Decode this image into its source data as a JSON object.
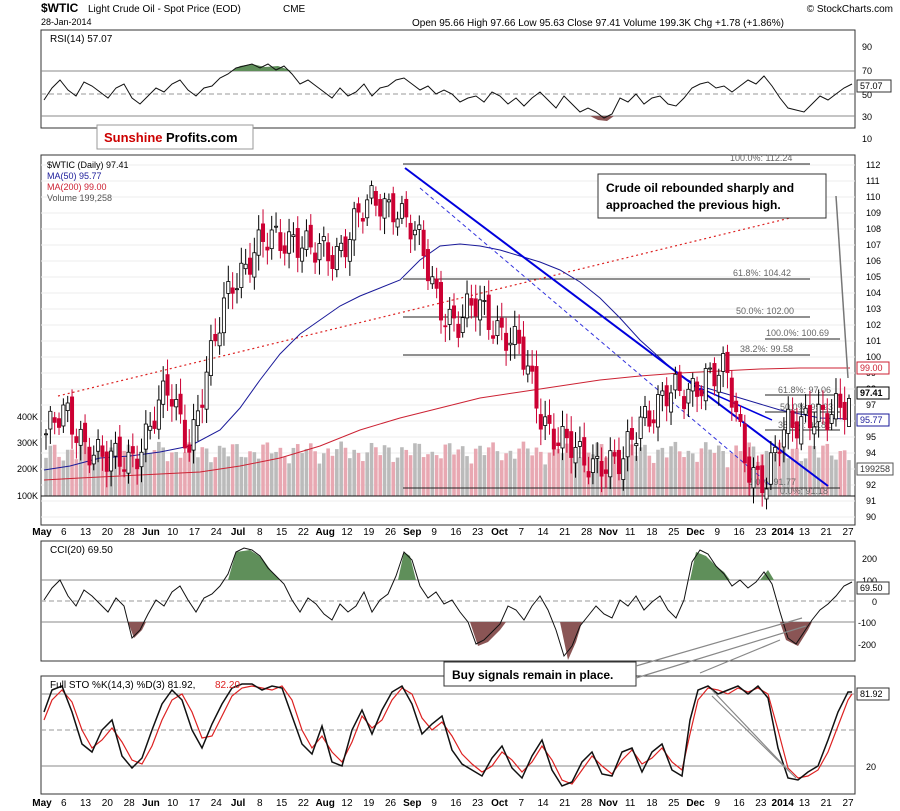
{
  "header": {
    "symbol": "$WTIC",
    "name": "Light Crude Oil - Spot Price (EOD)",
    "exchange": "CME",
    "date": "28-Jan-2014",
    "watermark": "© StockCharts.com",
    "quote": "Open 95.66  High 97.66  Low 95.63  Close 97.41  Volume 199.3K  Chg +1.78 (+1.86%)"
  },
  "logo": {
    "part1": "Sunshine",
    "part2": "Profits.com",
    "colors": {
      "part1": "#cc0000",
      "part2": "#000000"
    }
  },
  "rsi_panel": {
    "legend": "RSI(14) 57.07",
    "current": "57.07",
    "ticks": [
      "90",
      "70",
      "50",
      "30",
      "10"
    ]
  },
  "price_panel": {
    "legend_main": "$WTIC (Daily) 97.41",
    "legend_ma50": "MA(50) 95.77",
    "legend_ma200": "MA(200) 99.00",
    "legend_volume": "Volume 199,258",
    "y_ticks": [
      "112",
      "111",
      "110",
      "109",
      "108",
      "107",
      "106",
      "105",
      "104",
      "103",
      "102",
      "101",
      "100",
      "99",
      "98",
      "97",
      "96",
      "95",
      "94",
      "93",
      "92",
      "91",
      "90"
    ],
    "vol_ticks": [
      "400K",
      "300K",
      "200K",
      "100K"
    ],
    "badges": {
      "ma200": "99.00",
      "close": "97.41",
      "ma50": "95.77",
      "volume": "199258"
    },
    "fib_labels": {
      "f100": "100.0%: 112.24",
      "f618": "61.8%: 104.42",
      "f500": "50.0%: 102.00",
      "f382": "38.2%: 99.58",
      "f100b": "100.0%: 100.69",
      "f618b": "61.8%: 97.06",
      "f500b": "50.0%: 95.93",
      "f382b": "38.2%: 94.81",
      "f0": "0.0%: 91.77",
      "f0b": "0.0%: 91.18"
    },
    "annotation_line1": "Crude oil rebounded sharply and",
    "annotation_line2": "approached the previous high."
  },
  "cci_panel": {
    "legend": "CCI(20) 69.50",
    "current": "69.50",
    "ticks": [
      "200",
      "100",
      "0",
      "-100",
      "-200"
    ]
  },
  "sto_panel": {
    "legend_k": "Full STO %K(14,3) %D(3) 81.92,",
    "legend_d": "82.20",
    "current": "81.92",
    "tick": "20",
    "annotation": "Buy signals remain in place."
  },
  "x_axis_labels": [
    "May",
    "6",
    "13",
    "20",
    "28",
    "Jun",
    "10",
    "17",
    "24",
    "Jul",
    "8",
    "15",
    "22",
    "Aug",
    "12",
    "19",
    "26",
    "Sep",
    "9",
    "16",
    "23",
    "Oct",
    "7",
    "14",
    "21",
    "28",
    "Nov",
    "11",
    "18",
    "25",
    "Dec",
    "9",
    "16",
    "23",
    "2014",
    "13",
    "21",
    "27"
  ],
  "chart_data": {
    "type": "candlestick",
    "title": "$WTIC Light Crude Oil - Spot Price (EOD)",
    "period": "May 2013 - 28-Jan-2014 (daily)",
    "last_bar": {
      "date": "28-Jan-2014",
      "open": 95.66,
      "high": 97.66,
      "low": 95.63,
      "close": 97.41,
      "volume": 199258
    },
    "y_range": [
      90,
      113
    ],
    "close_path": [
      [
        "May 6",
        95.2
      ],
      [
        "May 13",
        96.2
      ],
      [
        "May 20",
        94.8
      ],
      [
        "May 28",
        93.1
      ],
      [
        "Jun 4",
        93.7
      ],
      [
        "Jun 10",
        95.4
      ],
      [
        "Jun 17",
        97.8
      ],
      [
        "Jun 24",
        94.9
      ],
      [
        "Jul 1",
        99.5
      ],
      [
        "Jul 8",
        105.0
      ],
      [
        "Jul 15",
        106.3
      ],
      [
        "Jul 22",
        107.2
      ],
      [
        "Aug 1",
        107.8
      ],
      [
        "Aug 12",
        106.2
      ],
      [
        "Aug 19",
        106.5
      ],
      [
        "Aug 26",
        108.5
      ],
      [
        "Sep 3",
        109.5
      ],
      [
        "Sep 9",
        109.8
      ],
      [
        "Sep 16",
        107.2
      ],
      [
        "Sep 23",
        103.8
      ],
      [
        "Oct 1",
        102.0
      ],
      [
        "Oct 7",
        103.1
      ],
      [
        "Oct 14",
        102.1
      ],
      [
        "Oct 21",
        100.2
      ],
      [
        "Oct 28",
        96.7
      ],
      [
        "Nov 4",
        94.8
      ],
      [
        "Nov 11",
        93.3
      ],
      [
        "Nov 18",
        93.8
      ],
      [
        "Nov 25",
        93.0
      ],
      [
        "Dec 2",
        96.5
      ],
      [
        "Dec 9",
        97.6
      ],
      [
        "Dec 16",
        97.3
      ],
      [
        "Dec 23",
        99.2
      ],
      [
        "Dec 30",
        98.8
      ],
      [
        "Jan 6",
        93.7
      ],
      [
        "Jan 13",
        92.2
      ],
      [
        "Jan 21",
        95.5
      ],
      [
        "Jan 24",
        96.8
      ],
      [
        "Jan 27",
        95.7
      ],
      [
        "Jan 28",
        97.41
      ]
    ],
    "moving_averages": {
      "MA50": 95.77,
      "MA200": 99.0
    },
    "fibonacci_levels": [
      {
        "label": "100.0%",
        "value": 112.24
      },
      {
        "label": "61.8%",
        "value": 104.42
      },
      {
        "label": "50.0%",
        "value": 102.0
      },
      {
        "label": "38.2%",
        "value": 99.58
      },
      {
        "label": "100.0%",
        "value": 100.69
      },
      {
        "label": "61.8%",
        "value": 97.06
      },
      {
        "label": "50.0%",
        "value": 95.93
      },
      {
        "label": "38.2%",
        "value": 94.81
      },
      {
        "label": "0.0%",
        "value": 91.77
      },
      {
        "label": "0.0%",
        "value": 91.18
      }
    ],
    "indicators": {
      "RSI14": 57.07,
      "CCI20": 69.5,
      "STO_K": 81.92,
      "STO_D": 82.2
    },
    "colors": {
      "up": "#000000",
      "down": "#cc0033",
      "ma50": "#1a1a99",
      "ma200": "#cc2233",
      "trend": "#0000dd",
      "osc_fill_up": "#5f8f5a",
      "osc_fill_down": "#8a5555"
    }
  }
}
